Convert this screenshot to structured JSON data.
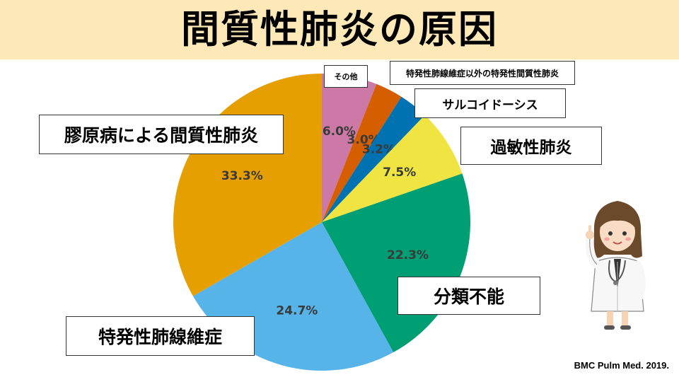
{
  "header": {
    "title": "間質性肺炎の原因"
  },
  "source": "BMC Pulm Med. 2019.",
  "chart_data": {
    "type": "pie",
    "start_angle_deg": 0,
    "direction": "clockwise",
    "slices": [
      {
        "label": "その他",
        "value": 6.0,
        "value_label": "6.0%",
        "color": "#cc79a7"
      },
      {
        "label": "特発性肺線維症以外の特発性間質性肺炎",
        "value": 3.0,
        "value_label": "3.0%",
        "color": "#d55e00"
      },
      {
        "label": "サルコイドーシス",
        "value": 3.2,
        "value_label": "3.2%",
        "color": "#0072b2"
      },
      {
        "label": "過敏性肺炎",
        "value": 7.5,
        "value_label": "7.5%",
        "color": "#f0e442"
      },
      {
        "label": "分類不能",
        "value": 22.3,
        "value_label": "22.3%",
        "color": "#009e73"
      },
      {
        "label": "特発性肺線維症",
        "value": 24.7,
        "value_label": "24.7%",
        "color": "#56b4e9"
      },
      {
        "label": "膠原病による間質性肺炎",
        "value": 33.3,
        "value_label": "33.3%",
        "color": "#e69f00"
      }
    ]
  }
}
